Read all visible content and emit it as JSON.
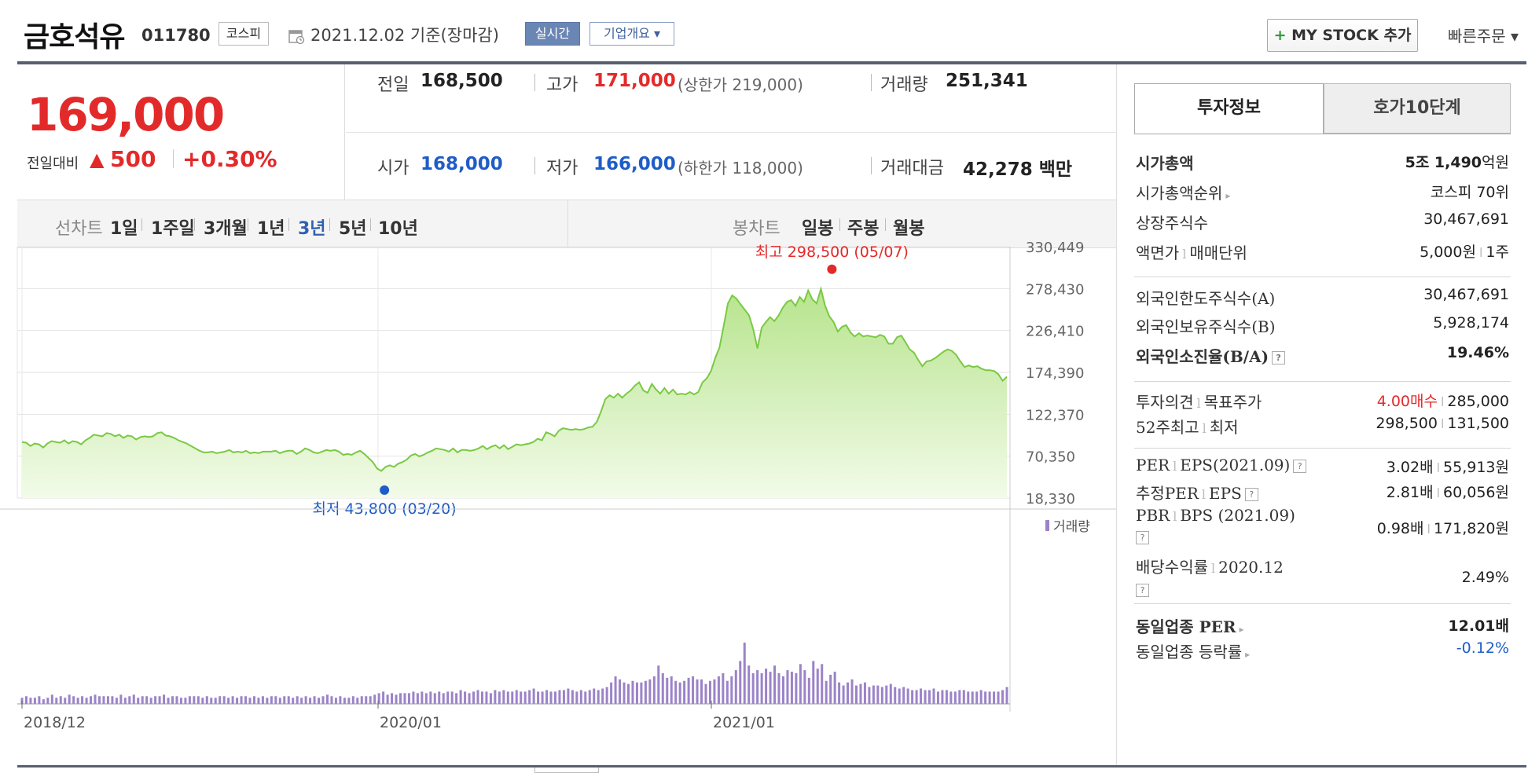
{
  "header": {
    "title": "금호석유",
    "code": "011780",
    "market": "코스피",
    "date": "2021.12.02 기준(장마감)",
    "realtime_label": "실시간",
    "overview_label": "기업개요 ▾",
    "mystock_plus": "+",
    "mystock_label": " MY STOCK 추가",
    "quick_order": "빠른주문 ▾"
  },
  "price": {
    "current": "169,000",
    "change_label": "전일대비",
    "change_arrow": "▲",
    "change_value": "500",
    "change_percent": "+0.30%"
  },
  "quote": {
    "prev_label": "전일",
    "prev": "168,500",
    "high_label": "고가",
    "high": "171,000",
    "upper_limit": "(상한가 219,000)",
    "volume_label": "거래량",
    "volume": "251,341",
    "open_label": "시가",
    "open": "168,000",
    "low_label": "저가",
    "low": "166,000",
    "lower_limit": "(하한가 118,000)",
    "amount_label": "거래대금",
    "amount": "42,278 백만"
  },
  "periods": {
    "line_label": "선차트",
    "line_items": [
      "1일",
      "1주일",
      "3개월",
      "1년",
      "3년",
      "5년",
      "10년"
    ],
    "selected": "3년",
    "candle_label": "봉차트",
    "candle_items": [
      "일봉",
      "주봉",
      "월봉"
    ]
  },
  "chart_data": {
    "type": "area",
    "x_ticks": [
      "2018/12",
      "2020/01",
      "2021/01"
    ],
    "y_ticks": [
      "330,449",
      "278,430",
      "226,410",
      "174,390",
      "122,370",
      "70,350",
      "18,330"
    ],
    "ylim": [
      18330,
      330449
    ],
    "volume_label": "거래량",
    "high_annotation": "최고 298,500 (05/07)",
    "low_annotation": "최저 43,800 (03/20)",
    "high_value": 298500,
    "low_value": 43800,
    "line_color": "#7ac943",
    "fill_color": "#d9f2c4",
    "volume_color": "#9b83c8",
    "weekly_close": [
      88000,
      87000,
      83000,
      86000,
      85000,
      81000,
      86000,
      89000,
      88000,
      87000,
      90000,
      86000,
      89000,
      88000,
      85000,
      90000,
      93000,
      97000,
      96000,
      95000,
      99000,
      98000,
      95000,
      97000,
      93000,
      96000,
      95000,
      91000,
      94000,
      95000,
      94000,
      95000,
      99000,
      100000,
      96000,
      95000,
      93000,
      90000,
      88000,
      86000,
      83000,
      80000,
      77000,
      75000,
      75000,
      76000,
      74000,
      75000,
      76000,
      78000,
      75000,
      76000,
      75000,
      77000,
      74000,
      75000,
      74000,
      76000,
      76000,
      76000,
      77000,
      74000,
      76000,
      77000,
      77000,
      73000,
      76000,
      80000,
      78000,
      75000,
      74000,
      76000,
      78000,
      77000,
      78000,
      76000,
      72000,
      73000,
      72000,
      75000,
      77000,
      73000,
      68000,
      63000,
      55000,
      52000,
      57000,
      59000,
      57000,
      61000,
      63000,
      66000,
      71000,
      73000,
      70000,
      72000,
      75000,
      77000,
      80000,
      79000,
      78000,
      76000,
      80000,
      75000,
      78000,
      78000,
      77000,
      78000,
      80000,
      83000,
      79000,
      82000,
      84000,
      80000,
      84000,
      79000,
      82000,
      85000,
      84000,
      85000,
      86000,
      88000,
      92000,
      90000,
      100000,
      98000,
      95000,
      102000,
      105000,
      104000,
      103000,
      104000,
      103000,
      104000,
      106000,
      107000,
      113000,
      126000,
      141000,
      146000,
      143000,
      148000,
      143000,
      148000,
      152000,
      158000,
      162000,
      152000,
      149000,
      160000,
      153000,
      148000,
      155000,
      148000,
      153000,
      147000,
      148000,
      147000,
      150000,
      147000,
      150000,
      162000,
      167000,
      176000,
      192000,
      205000,
      232000,
      260000,
      270000,
      266000,
      259000,
      252000,
      245000,
      228000,
      204000,
      230000,
      237000,
      243000,
      238000,
      245000,
      255000,
      262000,
      264000,
      257000,
      268000,
      262000,
      276000,
      265000,
      260000,
      278000,
      257000,
      244000,
      237000,
      225000,
      231000,
      233000,
      224000,
      219000,
      223000,
      219000,
      220000,
      219000,
      218000,
      221000,
      219000,
      210000,
      210000,
      218000,
      220000,
      212000,
      203000,
      199000,
      190000,
      182000,
      188000,
      189000,
      192000,
      196000,
      200000,
      203000,
      201000,
      196000,
      188000,
      181000,
      183000,
      181000,
      182000,
      179000,
      177000,
      177000,
      176000,
      172000,
      164000,
      169000
    ],
    "weekly_volume": [
      4,
      5,
      4,
      4,
      5,
      3,
      4,
      6,
      4,
      5,
      4,
      6,
      5,
      4,
      5,
      4,
      5,
      6,
      5,
      5,
      5,
      5,
      4,
      6,
      4,
      5,
      6,
      4,
      5,
      5,
      4,
      5,
      5,
      6,
      4,
      5,
      5,
      4,
      4,
      5,
      5,
      5,
      4,
      5,
      4,
      4,
      5,
      5,
      4,
      5,
      4,
      5,
      5,
      4,
      5,
      4,
      5,
      4,
      5,
      5,
      4,
      5,
      5,
      4,
      5,
      4,
      5,
      4,
      5,
      4,
      5,
      6,
      5,
      4,
      5,
      4,
      4,
      5,
      4,
      5,
      5,
      5,
      6,
      7,
      8,
      6,
      7,
      6,
      7,
      7,
      7,
      8,
      7,
      8,
      7,
      8,
      7,
      8,
      7,
      8,
      8,
      7,
      9,
      8,
      7,
      8,
      9,
      8,
      8,
      7,
      9,
      8,
      9,
      8,
      8,
      9,
      8,
      8,
      9,
      10,
      8,
      8,
      9,
      8,
      8,
      9,
      9,
      10,
      9,
      8,
      9,
      8,
      9,
      10,
      9,
      10,
      11,
      14,
      18,
      16,
      14,
      13,
      15,
      14,
      14,
      15,
      16,
      18,
      25,
      20,
      17,
      18,
      15,
      14,
      15,
      17,
      18,
      16,
      16,
      13,
      15,
      16,
      18,
      20,
      15,
      18,
      22,
      28,
      40,
      25,
      20,
      22,
      20,
      23,
      21,
      25,
      20,
      18,
      22,
      21,
      20,
      26,
      22,
      17,
      28,
      23,
      26,
      15,
      19,
      21,
      14,
      12,
      14,
      16,
      12,
      13,
      14,
      11,
      12,
      12,
      11,
      12,
      13,
      11,
      10,
      11,
      10,
      9,
      9,
      10,
      9,
      9,
      10,
      8,
      9,
      9,
      8,
      8,
      9,
      9,
      8,
      8,
      8,
      9,
      8,
      8,
      8,
      8,
      9,
      11
    ]
  },
  "panel": {
    "tab_invest": "투자정보",
    "tab_hoga": "호가10단계",
    "rows1": [
      {
        "label": "시가총액",
        "value_a": "5조 1,490",
        "value_b": "억원"
      },
      {
        "label": "시가총액순위",
        "value": "코스피 70위"
      },
      {
        "label": "상장주식수",
        "value": "30,467,691"
      },
      {
        "label": "액면가",
        "label2": "매매단위",
        "value_a": "5,000원",
        "value_b": "1주"
      }
    ],
    "rows2": [
      {
        "label": "외국인한도주식수(A)",
        "value": "30,467,691"
      },
      {
        "label": "외국인보유주식수(B)",
        "value": "5,928,174"
      },
      {
        "label": "외국인소진율(B/A)",
        "value": "19.46%"
      }
    ],
    "rows3": [
      {
        "label": "투자의견",
        "label2": "목표주가",
        "value_a": "4.00매수",
        "value_b": "285,000"
      },
      {
        "label": "52주최고",
        "label2": "최저",
        "value_a": "298,500",
        "value_b": "131,500"
      }
    ],
    "rows4": [
      {
        "label": "PER",
        "label2": "EPS(2021.09)",
        "value_a": "3.02배",
        "value_b": "55,913원"
      },
      {
        "label": "추정PER",
        "label2": "EPS",
        "value_a": "2.81배",
        "value_b": "60,056원"
      },
      {
        "label": "PBR",
        "label2": "BPS (2021.09)",
        "value_a": "0.98배",
        "value_b": "171,820원"
      },
      {
        "label": "배당수익률",
        "label2": "2020.12",
        "value": "2.49%"
      }
    ],
    "rows5": [
      {
        "label": "동일업종 PER",
        "value": "12.01배"
      },
      {
        "label": "동일업종 등락률",
        "value": "-0.12%"
      }
    ],
    "help_glyph": "?",
    "more_arrow": "▸",
    "sep_glyph": "l"
  }
}
